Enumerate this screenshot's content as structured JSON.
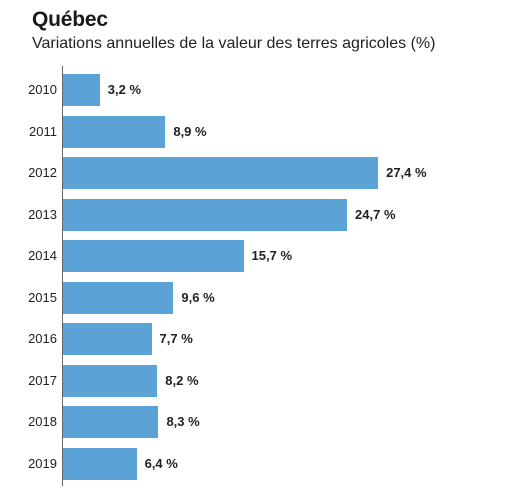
{
  "chart_data": {
    "type": "bar",
    "orientation": "horizontal",
    "title": "Québec",
    "subtitle": "Variations annuelles de la valeur des terres agricoles (%)",
    "categories": [
      "2010",
      "2011",
      "2012",
      "2013",
      "2014",
      "2015",
      "2016",
      "2017",
      "2018",
      "2019"
    ],
    "values": [
      3.2,
      8.9,
      27.4,
      24.7,
      15.7,
      9.6,
      7.7,
      8.2,
      8.3,
      6.4
    ],
    "value_labels": [
      "3,2 %",
      "8,9 %",
      "27,4 %",
      "24,7 %",
      "15,7 %",
      "9,6 %",
      "7,7 %",
      "8,2 %",
      "8,3 %",
      "6,4 %"
    ],
    "bar_color": "#5ba3d6",
    "grid": false,
    "legend": "none"
  }
}
